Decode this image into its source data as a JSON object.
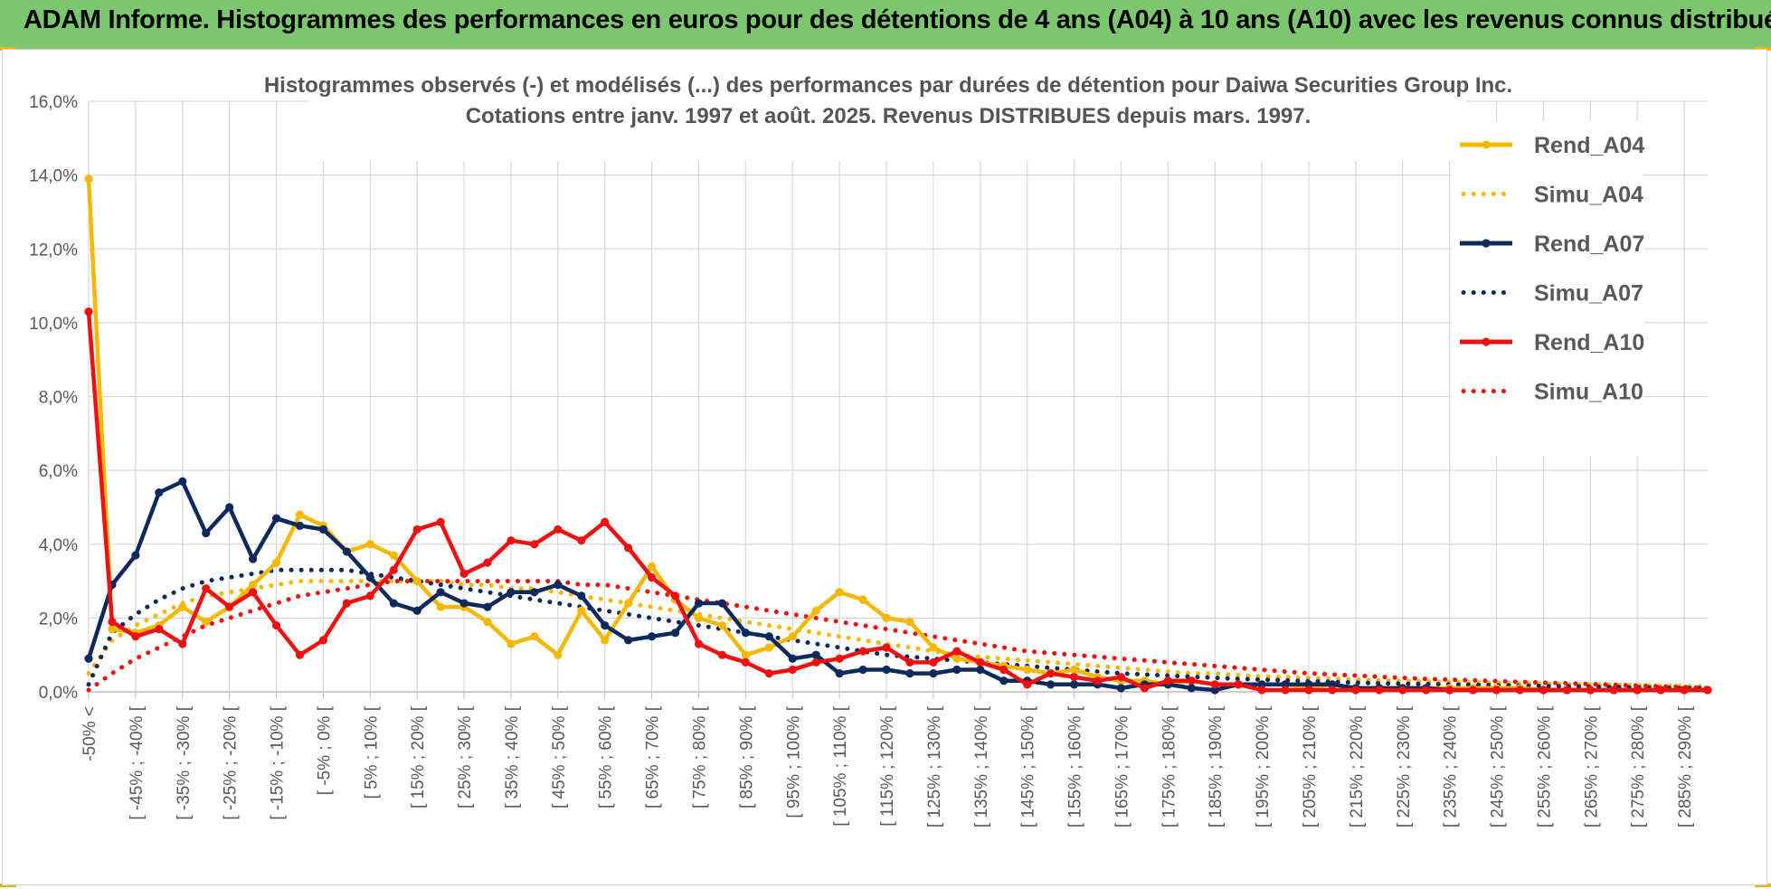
{
  "banner": {
    "title": "ADAM Informe. Histogrammes des performances en euros pour des détentions de 4 ans (A04) à 10 ans (A10) avec les revenus connus distribués"
  },
  "colors": {
    "banner": "#7cc66f",
    "a04": "#f5b800",
    "a07": "#0e2a5c",
    "a10": "#f01010",
    "grid": "#d9d9d9"
  },
  "chart_data": {
    "type": "line",
    "title": "Histogrammes observés (-) et modélisés (...) des performances par durées de détention pour Daiwa Securities Group Inc.",
    "subtitle": "Cotations entre janv. 1997 et août. 2025. Revenus DISTRIBUES depuis mars. 1997.",
    "xlabel": "",
    "ylabel": "",
    "ylim": [
      0,
      16
    ],
    "y_ticks": [
      "0,0%",
      "2,0%",
      "4,0%",
      "6,0%",
      "8,0%",
      "10,0%",
      "12,0%",
      "14,0%",
      "16,0%"
    ],
    "grid": true,
    "legend_position": "right",
    "x_labels": [
      "-50% <",
      "[ -45% ; -40% [",
      "[ -35% ; -30% [",
      "[ -25% ; -20% [",
      "[ -15% ; -10% [",
      "[ -5% ; 0% [",
      "[ 5% ; 10% [",
      "[ 15% ; 20% [",
      "[ 25% ; 30% [",
      "[ 35% ; 40% [",
      "[ 45% ; 50% [",
      "[ 55% ; 60% [",
      "[ 65% ; 70% [",
      "[ 75% ; 80% [",
      "[ 85% ; 90% [",
      "[ 95% ; 100% [",
      "[ 105% ; 110% [",
      "[ 115% ; 120% [",
      "[ 125% ; 130% [",
      "[ 135% ; 140% [",
      "[ 145% ; 150% [",
      "[ 155% ; 160% [",
      "[ 165% ; 170% [",
      "[ 175% ; 180% [",
      "[ 185% ; 190% [",
      "[ 195% ; 200% [",
      "[ 205% ; 210% [",
      "[ 215% ; 220% [",
      "[ 225% ; 230% [",
      "[ 235% ; 240% [",
      "[ 245% ; 250% [",
      "[ 255% ; 260% [",
      "[ 265% ; 270% [",
      "[ 275% ; 280% [",
      "[ 285% ; 290% ["
    ],
    "series": [
      {
        "name": "Rend_A04",
        "style": "solid",
        "color": "#f5b800",
        "values": [
          13.9,
          1.7,
          1.6,
          1.8,
          2.3,
          1.9,
          2.3,
          2.9,
          3.5,
          4.8,
          4.5,
          3.8,
          4.0,
          3.7,
          3.0,
          2.3,
          2.3,
          1.9,
          1.3,
          1.5,
          1.0,
          2.2,
          1.4,
          2.4,
          3.4,
          2.5,
          2.0,
          1.8,
          1.0,
          1.2,
          1.5,
          2.2,
          2.7,
          2.5,
          2.0,
          1.9,
          1.2,
          0.9,
          0.8,
          0.7,
          0.6,
          0.5,
          0.6,
          0.4,
          0.3,
          0.3,
          0.2,
          0.3,
          0.2,
          0.2,
          0.2,
          0.2,
          0.1,
          0.2,
          0.1,
          0.1,
          0.1,
          0.1,
          0.1,
          0.1,
          0.1,
          0.1,
          0.05,
          0.05,
          0.05,
          0.05,
          0.05,
          0.05,
          0.05,
          0.05
        ]
      },
      {
        "name": "Simu_A04",
        "style": "dotted",
        "color": "#f5b800",
        "values": [
          0.5,
          1.4,
          1.8,
          2.1,
          2.4,
          2.6,
          2.7,
          2.8,
          2.9,
          3.0,
          3.0,
          3.0,
          3.0,
          3.0,
          3.0,
          3.0,
          2.9,
          2.9,
          2.8,
          2.8,
          2.7,
          2.6,
          2.5,
          2.4,
          2.3,
          2.2,
          2.1,
          2.0,
          1.9,
          1.8,
          1.7,
          1.6,
          1.5,
          1.4,
          1.3,
          1.2,
          1.1,
          1.0,
          0.95,
          0.9,
          0.85,
          0.8,
          0.75,
          0.7,
          0.65,
          0.6,
          0.55,
          0.5,
          0.5,
          0.45,
          0.42,
          0.4,
          0.38,
          0.35,
          0.33,
          0.31,
          0.3,
          0.28,
          0.27,
          0.25,
          0.24,
          0.23,
          0.22,
          0.21,
          0.2,
          0.19,
          0.18,
          0.17,
          0.16,
          0.15
        ]
      },
      {
        "name": "Rend_A07",
        "style": "solid",
        "color": "#0e2a5c",
        "values": [
          0.9,
          2.9,
          3.7,
          5.4,
          5.7,
          4.3,
          5.0,
          3.6,
          4.7,
          4.5,
          4.4,
          3.8,
          3.1,
          2.4,
          2.2,
          2.7,
          2.4,
          2.3,
          2.7,
          2.7,
          2.9,
          2.6,
          1.8,
          1.4,
          1.5,
          1.6,
          2.4,
          2.4,
          1.6,
          1.5,
          0.9,
          1.0,
          0.5,
          0.6,
          0.6,
          0.5,
          0.5,
          0.6,
          0.6,
          0.3,
          0.3,
          0.2,
          0.2,
          0.2,
          0.1,
          0.2,
          0.2,
          0.1,
          0.05,
          0.2,
          0.2,
          0.2,
          0.2,
          0.2,
          0.1,
          0.1,
          0.1,
          0.1,
          0.05,
          0.05,
          0.05,
          0.05,
          0.05,
          0.05,
          0.05,
          0.05,
          0.05,
          0.05,
          0.05,
          0.05
        ]
      },
      {
        "name": "Simu_A07",
        "style": "dotted",
        "color": "#0e2a5c",
        "values": [
          0.2,
          1.6,
          2.1,
          2.5,
          2.8,
          3.0,
          3.1,
          3.2,
          3.3,
          3.3,
          3.3,
          3.3,
          3.2,
          3.1,
          3.0,
          2.9,
          2.8,
          2.7,
          2.6,
          2.5,
          2.4,
          2.3,
          2.2,
          2.1,
          2.0,
          1.9,
          1.8,
          1.7,
          1.6,
          1.5,
          1.4,
          1.3,
          1.2,
          1.1,
          1.0,
          0.95,
          0.9,
          0.85,
          0.8,
          0.75,
          0.7,
          0.65,
          0.6,
          0.55,
          0.5,
          0.47,
          0.44,
          0.41,
          0.38,
          0.35,
          0.33,
          0.31,
          0.29,
          0.27,
          0.25,
          0.23,
          0.22,
          0.21,
          0.2,
          0.19,
          0.18,
          0.17,
          0.16,
          0.15,
          0.14,
          0.13,
          0.12,
          0.11,
          0.1,
          0.1
        ]
      },
      {
        "name": "Rend_A10",
        "style": "solid",
        "color": "#f01010",
        "values": [
          10.3,
          1.9,
          1.5,
          1.7,
          1.3,
          2.8,
          2.3,
          2.7,
          1.8,
          1.0,
          1.4,
          2.4,
          2.6,
          3.3,
          4.4,
          4.6,
          3.2,
          3.5,
          4.1,
          4.0,
          4.4,
          4.1,
          4.6,
          3.9,
          3.1,
          2.6,
          1.3,
          1.0,
          0.8,
          0.5,
          0.6,
          0.8,
          0.9,
          1.1,
          1.2,
          0.8,
          0.8,
          1.1,
          0.8,
          0.6,
          0.2,
          0.5,
          0.4,
          0.3,
          0.4,
          0.1,
          0.3,
          0.3,
          0.2,
          0.2,
          0.05,
          0.05,
          0.05,
          0.05,
          0.05,
          0.05,
          0.05,
          0.05,
          0.05,
          0.05,
          0.05,
          0.05,
          0.05,
          0.05,
          0.05,
          0.05,
          0.05,
          0.05,
          0.05,
          0.05
        ]
      },
      {
        "name": "Simu_A10",
        "style": "dotted",
        "color": "#f01010",
        "values": [
          0.05,
          0.5,
          0.9,
          1.2,
          1.5,
          1.8,
          2.0,
          2.2,
          2.4,
          2.6,
          2.7,
          2.8,
          2.9,
          3.0,
          3.0,
          3.0,
          3.0,
          3.0,
          3.0,
          3.0,
          3.0,
          2.9,
          2.9,
          2.8,
          2.7,
          2.6,
          2.5,
          2.4,
          2.3,
          2.2,
          2.1,
          2.0,
          1.9,
          1.8,
          1.7,
          1.6,
          1.5,
          1.4,
          1.3,
          1.2,
          1.1,
          1.05,
          1.0,
          0.95,
          0.9,
          0.85,
          0.8,
          0.75,
          0.7,
          0.65,
          0.6,
          0.55,
          0.5,
          0.47,
          0.44,
          0.41,
          0.38,
          0.35,
          0.33,
          0.31,
          0.29,
          0.27,
          0.25,
          0.23,
          0.21,
          0.19,
          0.17,
          0.15,
          0.13,
          0.1
        ]
      }
    ]
  }
}
